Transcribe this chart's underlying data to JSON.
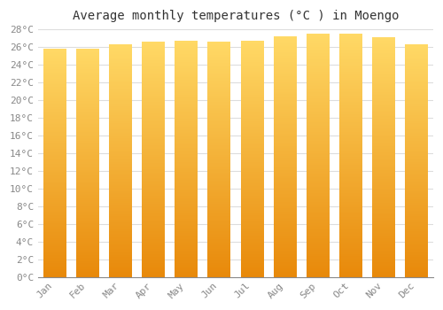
{
  "title": "Average monthly temperatures (°C ) in Moengo",
  "months": [
    "Jan",
    "Feb",
    "Mar",
    "Apr",
    "May",
    "Jun",
    "Jul",
    "Aug",
    "Sep",
    "Oct",
    "Nov",
    "Dec"
  ],
  "values": [
    25.8,
    25.8,
    26.3,
    26.6,
    26.7,
    26.6,
    26.7,
    27.2,
    27.5,
    27.5,
    27.1,
    26.3
  ],
  "bar_color_bottom": "#E8890A",
  "bar_color_top": "#FFD966",
  "background_color": "#FFFFFF",
  "grid_color": "#DDDDDD",
  "text_color": "#888888",
  "ylim": [
    0,
    28
  ],
  "ytick_step": 2,
  "title_fontsize": 10,
  "tick_fontsize": 8
}
